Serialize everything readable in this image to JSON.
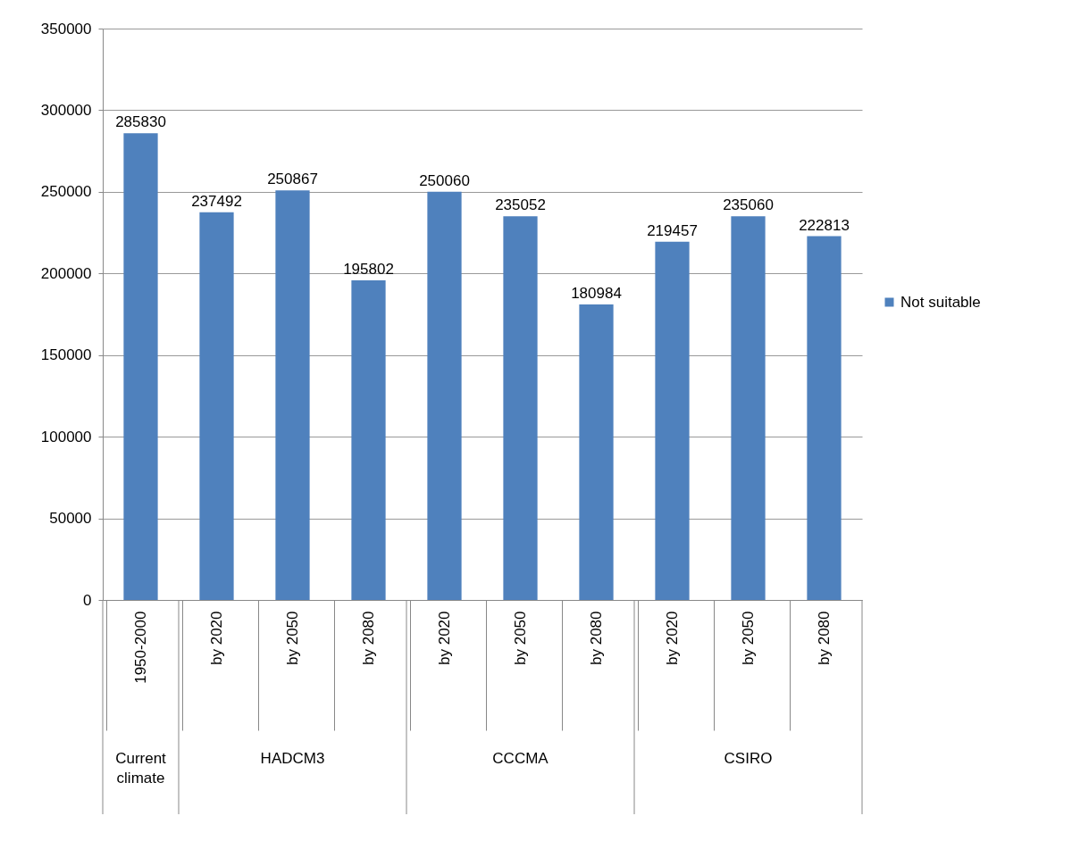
{
  "chart_data": {
    "type": "bar",
    "categories": [
      "1950-2000",
      "by 2020",
      "by 2050",
      "by 2080",
      "by 2020",
      "by 2050",
      "by 2080",
      "by 2020",
      "by 2050",
      "by 2080"
    ],
    "series": [
      {
        "name": "Not suitable",
        "color": "#4f81bd",
        "values": [
          285830,
          237492,
          250867,
          195802,
          250060,
          235052,
          180984,
          219457,
          235060,
          222813
        ]
      }
    ],
    "ylim": [
      0,
      350000
    ],
    "yticks": [
      0,
      50000,
      100000,
      150000,
      200000,
      250000,
      300000,
      350000
    ],
    "grid": "y",
    "legend": "right",
    "data_labels": true,
    "annotations": [
      "Current climate",
      "HADCM3",
      "CCCMA",
      "CSIRO"
    ]
  }
}
